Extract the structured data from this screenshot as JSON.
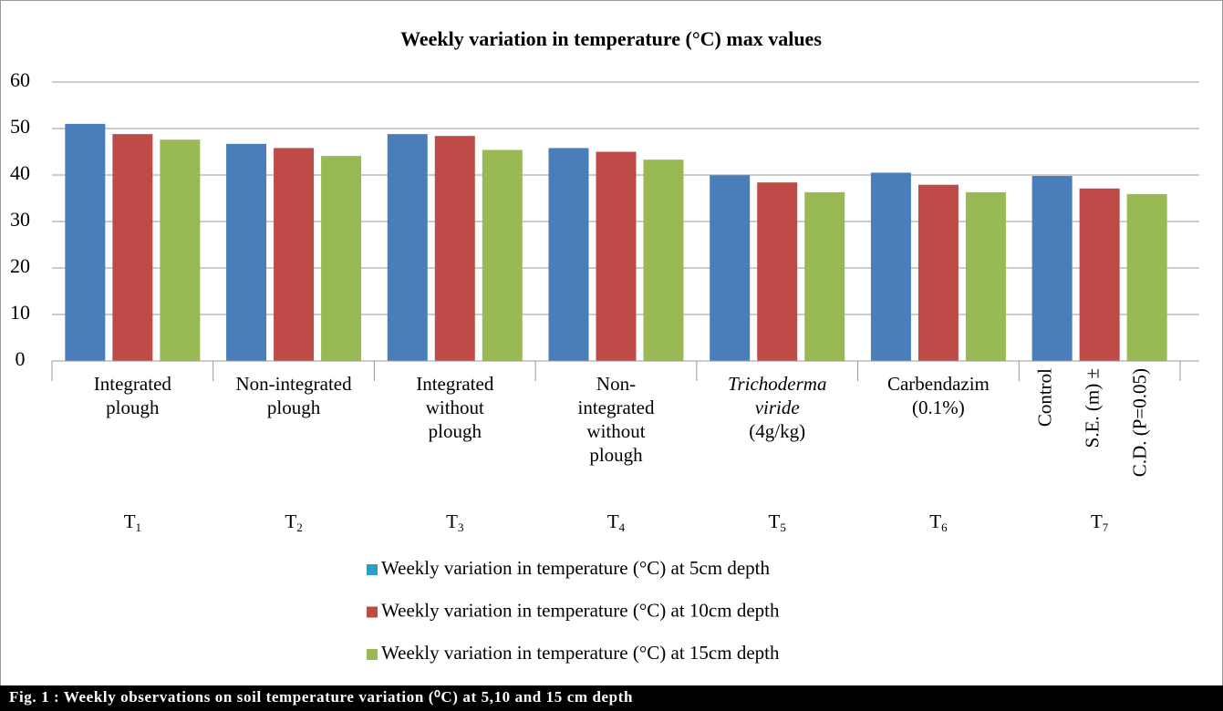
{
  "chart_data": {
    "type": "bar",
    "title": "Weekly variation in temperature (°C) max values",
    "caption": "Fig. 1 : Weekly observations on soil temperature variation (⁰C) at 5,10 and 15 cm depth",
    "categories": [
      [
        {
          "text": "Integrated"
        },
        {
          "text": "plough"
        }
      ],
      [
        {
          "text": "Non-integrated"
        },
        {
          "text": "plough"
        }
      ],
      [
        {
          "text": "Integrated"
        },
        {
          "text": "without"
        },
        {
          "text": "plough"
        }
      ],
      [
        {
          "text": "Non-"
        },
        {
          "text": "integrated"
        },
        {
          "text": "without"
        },
        {
          "text": "plough"
        }
      ],
      [
        {
          "text": "Trichoderma",
          "italic": true
        },
        {
          "text": "viride",
          "italic": true
        },
        {
          "text": "(4g/kg)"
        }
      ],
      [
        {
          "text": "Carbendazim"
        },
        {
          "text": "(0.1%)"
        }
      ],
      {
        "orientation": "vertical",
        "labels": [
          "Control",
          "S.E. (m) ±",
          "C.D. (P=0.05)"
        ]
      }
    ],
    "codes": [
      [
        "T",
        "1"
      ],
      [
        "T",
        "2"
      ],
      [
        "T",
        "3"
      ],
      [
        "T",
        "4"
      ],
      [
        "T",
        "5"
      ],
      [
        "T",
        "6"
      ],
      [
        "T",
        "7"
      ]
    ],
    "series": [
      {
        "name": "Weekly variation in temperature (°C) at 5cm depth",
        "color": "#4a7ebb",
        "legend_color": "#2e9cc4",
        "values": [
          51,
          46.7,
          48.8,
          45.8,
          39.9,
          40.5,
          39.8
        ]
      },
      {
        "name": "Weekly variation in temperature (°C) at 10cm depth",
        "color": "#be4b48",
        "values": [
          48.8,
          45.8,
          48.4,
          45,
          38.4,
          37.9,
          37.1
        ]
      },
      {
        "name": "Weekly variation in temperature (°C) at 15cm depth",
        "color": "#98b954",
        "values": [
          47.6,
          44.1,
          45.4,
          43.3,
          36.3,
          36.3,
          35.9
        ]
      }
    ],
    "ylim": [
      0,
      60
    ],
    "yticks": [
      0,
      10,
      20,
      30,
      40,
      50,
      60
    ],
    "grid": true
  }
}
